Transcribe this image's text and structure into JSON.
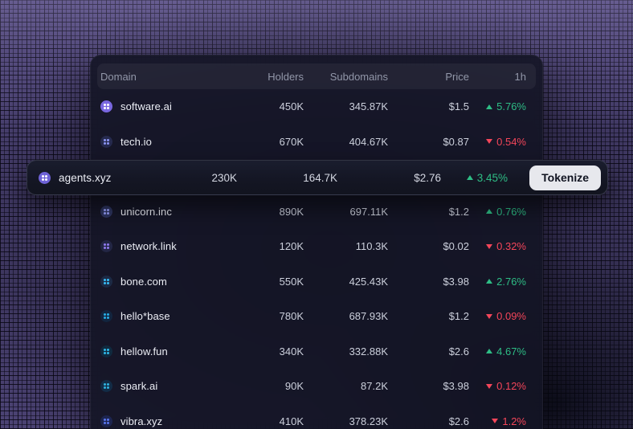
{
  "colors": {
    "up": "#2ebd85",
    "down": "#f4465a",
    "accent": "#6e62d6"
  },
  "table": {
    "columns": {
      "domain": "Domain",
      "holders": "Holders",
      "subdomains": "Subdomains",
      "price": "Price",
      "change_1h": "1h"
    },
    "rows": [
      {
        "domain": "software.ai",
        "holders": "450K",
        "subdomains": "345.87K",
        "price": "$1.5",
        "change": "5.76%",
        "direction": "up",
        "icon": {
          "bg": "#7a68e0",
          "fg": "#ffffff"
        }
      },
      {
        "domain": "tech.io",
        "holders": "670K",
        "subdomains": "404.67K",
        "price": "$0.87",
        "change": "0.54%",
        "direction": "down",
        "icon": {
          "bg": "#262a4e",
          "fg": "#8d96f5"
        }
      },
      {
        "domain": "unicorn.inc",
        "holders": "890K",
        "subdomains": "697.11K",
        "price": "$1.2",
        "change": "0.76%",
        "direction": "up",
        "icon": {
          "bg": "#2e3560",
          "fg": "#9aa3ff"
        }
      },
      {
        "domain": "network.link",
        "holders": "120K",
        "subdomains": "110.3K",
        "price": "$0.02",
        "change": "0.32%",
        "direction": "down",
        "icon": {
          "bg": "#232645",
          "fg": "#8f7bf0"
        }
      },
      {
        "domain": "bone.com",
        "holders": "550K",
        "subdomains": "425.43K",
        "price": "$3.98",
        "change": "2.76%",
        "direction": "up",
        "icon": {
          "bg": "#1c2a45",
          "fg": "#38bdf8"
        }
      },
      {
        "domain": "hello*base",
        "holders": "780K",
        "subdomains": "687.93K",
        "price": "$1.2",
        "change": "0.09%",
        "direction": "down",
        "icon": {
          "bg": "#12253f",
          "fg": "#27aee8"
        }
      },
      {
        "domain": "hellow.fun",
        "holders": "340K",
        "subdomains": "332.88K",
        "price": "$2.6",
        "change": "4.67%",
        "direction": "up",
        "icon": {
          "bg": "#102a3f",
          "fg": "#2fb9ea"
        }
      },
      {
        "domain": "spark.ai",
        "holders": "90K",
        "subdomains": "87.2K",
        "price": "$3.98",
        "change": "0.12%",
        "direction": "down",
        "icon": {
          "bg": "#122c46",
          "fg": "#2fb3e0"
        }
      },
      {
        "domain": "vibra.xyz",
        "holders": "410K",
        "subdomains": "378.23K",
        "price": "$2.6",
        "change": "1.2%",
        "direction": "down",
        "icon": {
          "bg": "#1d2550",
          "fg": "#5b76f0"
        }
      }
    ]
  },
  "featured_row": {
    "domain": "agents.xyz",
    "holders": "230K",
    "subdomains": "164.7K",
    "price": "$2.76",
    "change": "3.45%",
    "direction": "up",
    "action_label": "Tokenize",
    "icon": {
      "bg": "#6e62d6",
      "fg": "#ffffff"
    }
  }
}
